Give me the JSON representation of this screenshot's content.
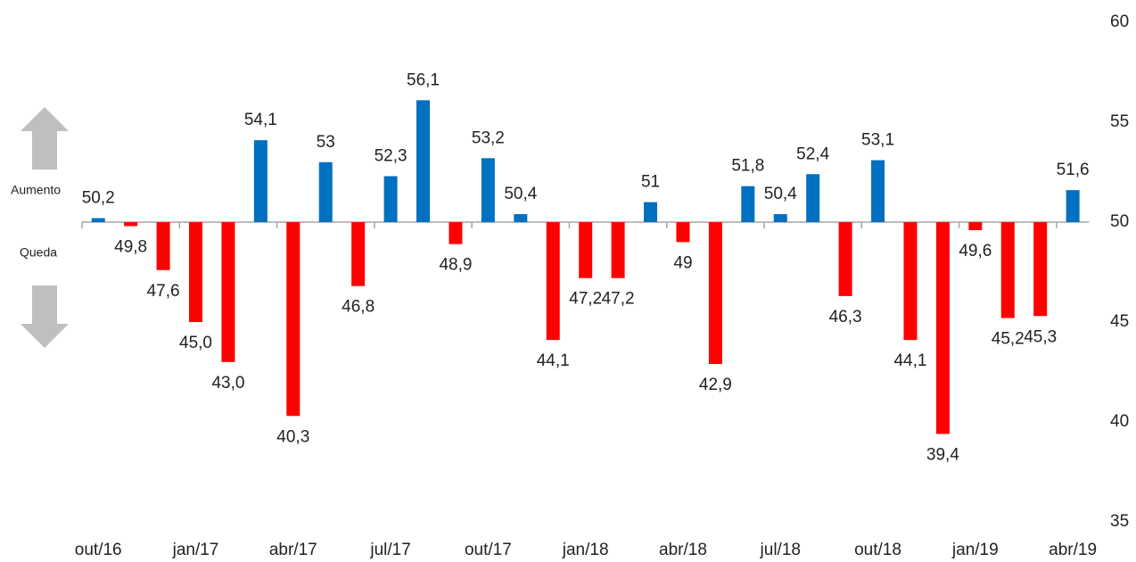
{
  "chart_data": {
    "type": "bar",
    "categories": [
      "out/16",
      null,
      null,
      "jan/17",
      null,
      null,
      "abr/17",
      null,
      null,
      "jul/17",
      null,
      null,
      "out/17",
      null,
      null,
      "jan/18",
      null,
      null,
      "abr/18",
      null,
      null,
      "jul/18",
      null,
      null,
      "out/18",
      null,
      null,
      "jan/19",
      null,
      null,
      "abr/19"
    ],
    "values": [
      50.2,
      49.8,
      47.6,
      45.0,
      43.0,
      54.1,
      40.3,
      53,
      46.8,
      52.3,
      56.1,
      48.9,
      53.2,
      50.4,
      44.1,
      47.2,
      47.2,
      51,
      49,
      42.9,
      51.8,
      50.4,
      52.4,
      46.3,
      53.1,
      44.1,
      39.4,
      49.6,
      45.2,
      45.3,
      51.6
    ],
    "value_labels": [
      "50,2",
      "49,8",
      "47,6",
      "45,0",
      "43,0",
      "54,1",
      "40,3",
      "53",
      "46,8",
      "52,3",
      "56,1",
      "48,9",
      "53,2",
      "50,4",
      "44,1",
      "47,2",
      "47,2",
      "51",
      "49",
      "42,9",
      "51,8",
      "50,4",
      "52,4",
      "46,3",
      "53,1",
      "44,1",
      "39,4",
      "49,6",
      "45,2",
      "45,3",
      "51,6"
    ],
    "baseline": 50,
    "colors": {
      "above": "#0070c0",
      "below": "#ff0000"
    },
    "ylim": [
      35,
      60
    ],
    "yticks": [
      35,
      40,
      45,
      50,
      55,
      60
    ],
    "y_axis_side": "right",
    "annotations": [
      "Aumento",
      "Queda"
    ]
  }
}
